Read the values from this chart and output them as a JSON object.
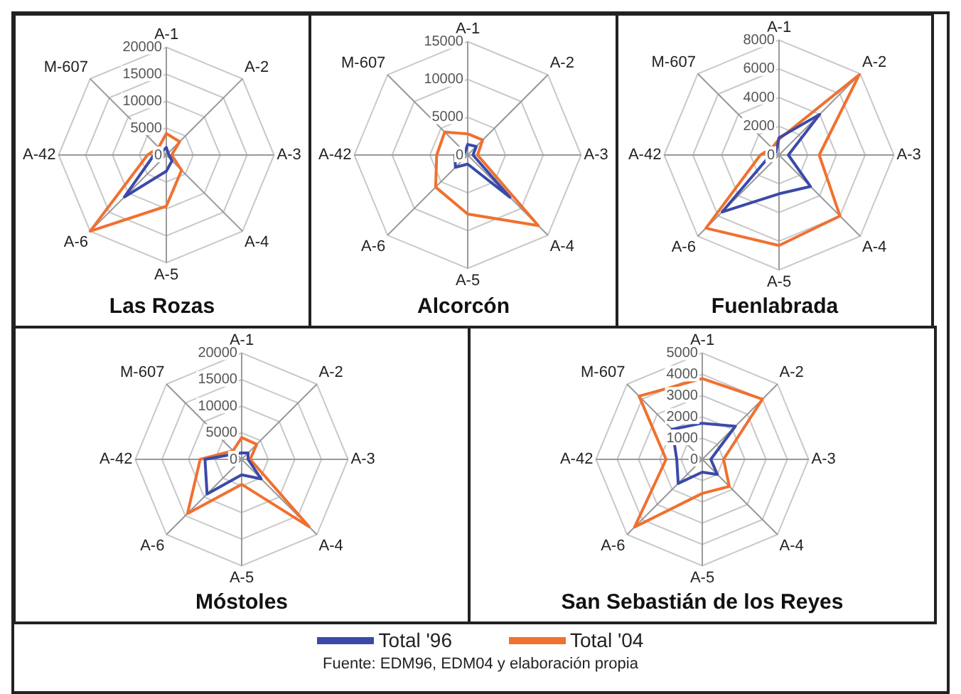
{
  "chart_data": [
    {
      "type": "radar",
      "title": "Las Rozas",
      "categories": [
        "A-1",
        "A-2",
        "A-3",
        "A-4",
        "A-5",
        "A-6",
        "A-42",
        "M-607"
      ],
      "ylim": [
        0,
        20000
      ],
      "yticks": [
        0,
        5000,
        10000,
        15000,
        20000
      ],
      "grid": true,
      "marker": "none",
      "series": [
        {
          "color": "#3b4aa8",
          "values": [
            1400,
            500,
            500,
            1500,
            3000,
            11000,
            2300,
            1000
          ]
        },
        {
          "color": "#f07030",
          "values": [
            4000,
            3500,
            1000,
            4000,
            9500,
            20000,
            3500,
            2000
          ]
        }
      ]
    },
    {
      "type": "radar",
      "title": "Alcorcón",
      "categories": [
        "A-1",
        "A-2",
        "A-3",
        "A-4",
        "A-5",
        "A-6",
        "A-42",
        "M-607"
      ],
      "ylim": [
        0,
        15000
      ],
      "yticks": [
        0,
        5000,
        10000,
        15000
      ],
      "grid": true,
      "marker": "none",
      "series": [
        {
          "color": "#3b4aa8",
          "values": [
            1400,
            1600,
            700,
            7900,
            1200,
            2300,
            1700,
            500
          ]
        },
        {
          "color": "#f07030",
          "values": [
            2800,
            2800,
            1300,
            13200,
            7800,
            6000,
            4100,
            4300
          ]
        }
      ]
    },
    {
      "type": "radar",
      "title": "Fuenlabrada",
      "categories": [
        "A-1",
        "A-2",
        "A-3",
        "A-4",
        "A-5",
        "A-6",
        "A-42",
        "M-607"
      ],
      "ylim": [
        0,
        8000
      ],
      "yticks": [
        0,
        2000,
        4000,
        6000,
        8000
      ],
      "grid": true,
      "marker": "none",
      "series": [
        {
          "color": "#3b4aa8",
          "values": [
            1200,
            4000,
            650,
            3100,
            2700,
            5600,
            600,
            300
          ]
        },
        {
          "color": "#f07030",
          "values": [
            1100,
            7900,
            2800,
            6000,
            6300,
            7200,
            1300,
            700
          ]
        }
      ]
    },
    {
      "type": "radar",
      "title": "Móstoles",
      "categories": [
        "A-1",
        "A-2",
        "A-3",
        "A-4",
        "A-5",
        "A-6",
        "A-42",
        "M-607"
      ],
      "ylim": [
        0,
        20000
      ],
      "yticks": [
        0,
        5000,
        10000,
        15000,
        20000
      ],
      "grid": true,
      "marker": "none",
      "series": [
        {
          "color": "#3b4aa8",
          "values": [
            1200,
            1700,
            1200,
            5200,
            2900,
            9200,
            6900,
            1500
          ]
        },
        {
          "color": "#f07030",
          "values": [
            4100,
            4000,
            1600,
            17900,
            4700,
            14400,
            7800,
            2300
          ]
        }
      ]
    },
    {
      "type": "radar",
      "title": "San Sebastián de los Reyes",
      "categories": [
        "A-1",
        "A-2",
        "A-3",
        "A-4",
        "A-5",
        "A-6",
        "A-42",
        "M-607"
      ],
      "ylim": [
        0,
        5000
      ],
      "yticks": [
        0,
        1000,
        2000,
        3000,
        4000,
        5000
      ],
      "grid": true,
      "legend": "bottom",
      "marker": "none",
      "annotations": [
        "Fuente: EDM96, EDM04 y elaboración propia"
      ],
      "series": [
        {
          "name": "Total '96",
          "color": "#3b4aa8",
          "values": [
            1700,
            2200,
            400,
            1000,
            600,
            1600,
            1200,
            2000
          ]
        },
        {
          "name": "Total '04",
          "color": "#f07030",
          "values": [
            3800,
            4000,
            1000,
            1800,
            1600,
            4500,
            1700,
            4200
          ]
        }
      ]
    }
  ]
}
